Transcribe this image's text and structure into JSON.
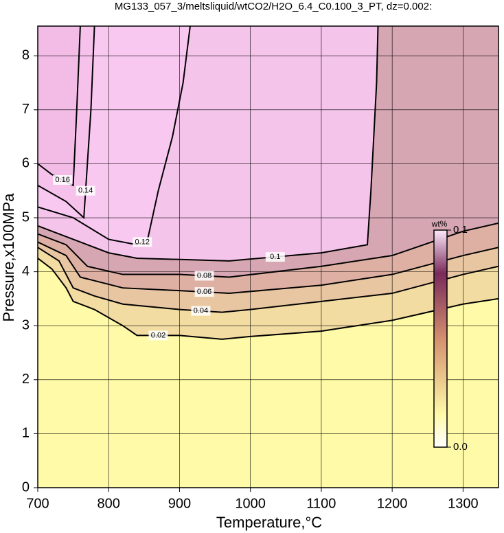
{
  "chart_data": {
    "type": "contour",
    "title": "MG133_057_3/meltsliquid/wtCO2/H2O_6.4_C0.100_3_PT, dz=0.002:",
    "x_label": "Temperature,°C",
    "y_label": "Pressure,x100MPa",
    "xlim": [
      700,
      1350
    ],
    "ylim": [
      0,
      8.55
    ],
    "xticks": [
      700,
      800,
      900,
      1000,
      1100,
      1200,
      1300
    ],
    "yticks": [
      0,
      1,
      2,
      3,
      4,
      5,
      6,
      7,
      8
    ],
    "grid": true,
    "contours": [
      {
        "level": 0.02,
        "color": "#f2dca2",
        "x": [
          700,
          720,
          740,
          750,
          780,
          820,
          840,
          900,
          960,
          1000,
          1100,
          1200,
          1300,
          1350
        ],
        "y": [
          4.25,
          4.05,
          3.7,
          3.45,
          3.3,
          3.0,
          2.82,
          2.82,
          2.75,
          2.8,
          2.9,
          3.1,
          3.4,
          3.5
        ]
      },
      {
        "level": 0.04,
        "color": "#e9c6a2",
        "x": [
          700,
          730,
          750,
          780,
          820,
          900,
          960,
          1000,
          1100,
          1200,
          1300,
          1350
        ],
        "y": [
          4.45,
          4.2,
          3.7,
          3.55,
          3.4,
          3.3,
          3.25,
          3.3,
          3.45,
          3.6,
          3.95,
          4.1
        ]
      },
      {
        "level": 0.06,
        "color": "#deb0a4",
        "x": [
          700,
          740,
          760,
          820,
          900,
          970,
          1100,
          1200,
          1300,
          1350
        ],
        "y": [
          4.55,
          4.3,
          3.9,
          3.7,
          3.65,
          3.6,
          3.75,
          3.95,
          4.3,
          4.45
        ]
      },
      {
        "level": 0.08,
        "color": "#d6a6b2",
        "x": [
          700,
          740,
          770,
          820,
          900,
          970,
          1100,
          1200,
          1300,
          1350
        ],
        "y": [
          4.7,
          4.5,
          4.1,
          3.95,
          3.95,
          3.9,
          4.1,
          4.3,
          4.75,
          4.9
        ]
      },
      {
        "level": 0.1,
        "color": "#f4c4ea",
        "x": [
          700,
          750,
          800,
          840,
          970,
          1100,
          1165,
          1170,
          1178,
          1180
        ],
        "y": [
          4.85,
          4.6,
          4.35,
          4.25,
          4.2,
          4.35,
          4.5,
          5.5,
          7.5,
          8.55
        ]
      },
      {
        "level": 0.12,
        "color": "#f8c8f0",
        "x": [
          700,
          750,
          800,
          840,
          855,
          870,
          890,
          905,
          915
        ],
        "y": [
          5.2,
          5.0,
          4.6,
          4.5,
          4.6,
          5.5,
          6.5,
          7.5,
          8.55
        ]
      },
      {
        "level": 0.14,
        "color": "#f6c2ec",
        "x": [
          700,
          740,
          765,
          770,
          775,
          780
        ],
        "y": [
          5.6,
          5.3,
          5.0,
          6.0,
          7.0,
          8.55
        ]
      },
      {
        "level": 0.16,
        "color": "#f2bce6",
        "x": [
          700,
          720,
          750,
          755,
          760
        ],
        "y": [
          6.0,
          5.8,
          5.6,
          7.0,
          8.55
        ]
      }
    ],
    "colorbar": {
      "label": "wt%",
      "clim": [
        0,
        0.1
      ],
      "ticks": [
        {
          "value": 0,
          "label": "0.0"
        },
        0.1
      ]
    }
  }
}
